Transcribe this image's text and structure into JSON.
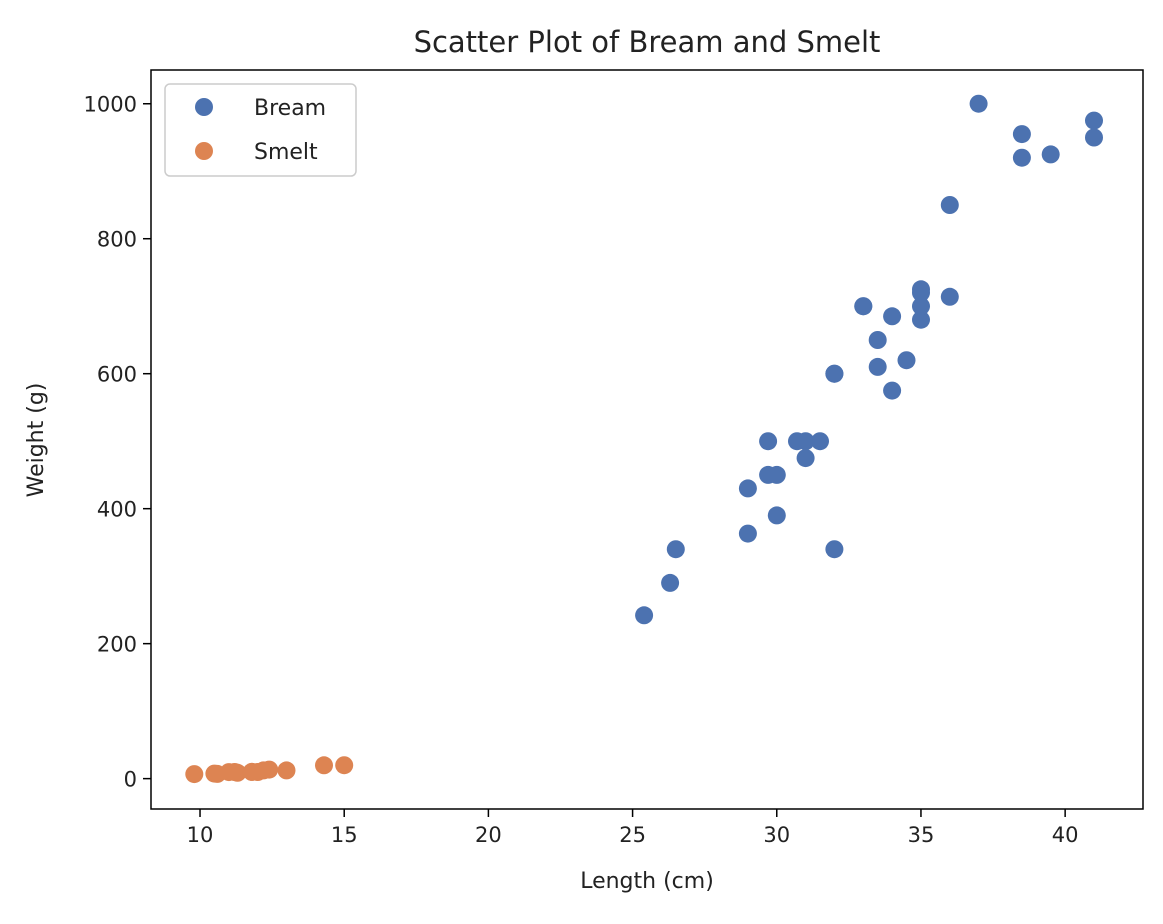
{
  "colors": {
    "bream": "#4c72b0",
    "smelt": "#dd8452"
  },
  "chart_data": {
    "type": "scatter",
    "title": "Scatter Plot of Bream and Smelt",
    "xlabel": "Length (cm)",
    "ylabel": "Weight (g)",
    "xlim": [
      8.3,
      42.7
    ],
    "ylim": [
      -45,
      1050
    ],
    "xticks": [
      10,
      15,
      20,
      25,
      30,
      35,
      40
    ],
    "yticks": [
      0,
      200,
      400,
      600,
      800,
      1000
    ],
    "xtick_labels": [
      "10",
      "15",
      "20",
      "25",
      "30",
      "35",
      "40"
    ],
    "ytick_labels": [
      "0",
      "200",
      "400",
      "600",
      "800",
      "1000"
    ],
    "grid": false,
    "legend_position": "top-left",
    "series": [
      {
        "name": "Bream",
        "color": "#4c72b0",
        "points": [
          [
            25.4,
            242
          ],
          [
            26.3,
            290
          ],
          [
            26.5,
            340
          ],
          [
            29.0,
            363
          ],
          [
            29.0,
            430
          ],
          [
            29.7,
            450
          ],
          [
            29.7,
            500
          ],
          [
            30.0,
            390
          ],
          [
            30.0,
            450
          ],
          [
            30.7,
            500
          ],
          [
            31.0,
            475
          ],
          [
            31.0,
            500
          ],
          [
            31.5,
            500
          ],
          [
            32.0,
            340
          ],
          [
            32.0,
            600
          ],
          [
            32.0,
            600
          ],
          [
            33.0,
            700
          ],
          [
            33.0,
            700
          ],
          [
            33.5,
            610
          ],
          [
            33.5,
            650
          ],
          [
            34.0,
            575
          ],
          [
            34.0,
            685
          ],
          [
            34.5,
            620
          ],
          [
            35.0,
            680
          ],
          [
            35.0,
            700
          ],
          [
            35.0,
            725
          ],
          [
            35.0,
            720
          ],
          [
            36.0,
            714
          ],
          [
            36.0,
            850
          ],
          [
            37.0,
            1000
          ],
          [
            38.5,
            920
          ],
          [
            38.5,
            955
          ],
          [
            39.5,
            925
          ],
          [
            41.0,
            975
          ],
          [
            41.0,
            950
          ]
        ]
      },
      {
        "name": "Smelt",
        "color": "#dd8452",
        "points": [
          [
            9.8,
            6.7
          ],
          [
            10.5,
            7.5
          ],
          [
            10.6,
            7.0
          ],
          [
            11.0,
            9.7
          ],
          [
            11.2,
            9.8
          ],
          [
            11.3,
            8.7
          ],
          [
            11.8,
            10.0
          ],
          [
            11.8,
            9.9
          ],
          [
            12.0,
            9.8
          ],
          [
            12.2,
            12.2
          ],
          [
            12.4,
            13.4
          ],
          [
            13.0,
            12.2
          ],
          [
            14.3,
            19.7
          ],
          [
            15.0,
            19.9
          ]
        ]
      }
    ]
  }
}
